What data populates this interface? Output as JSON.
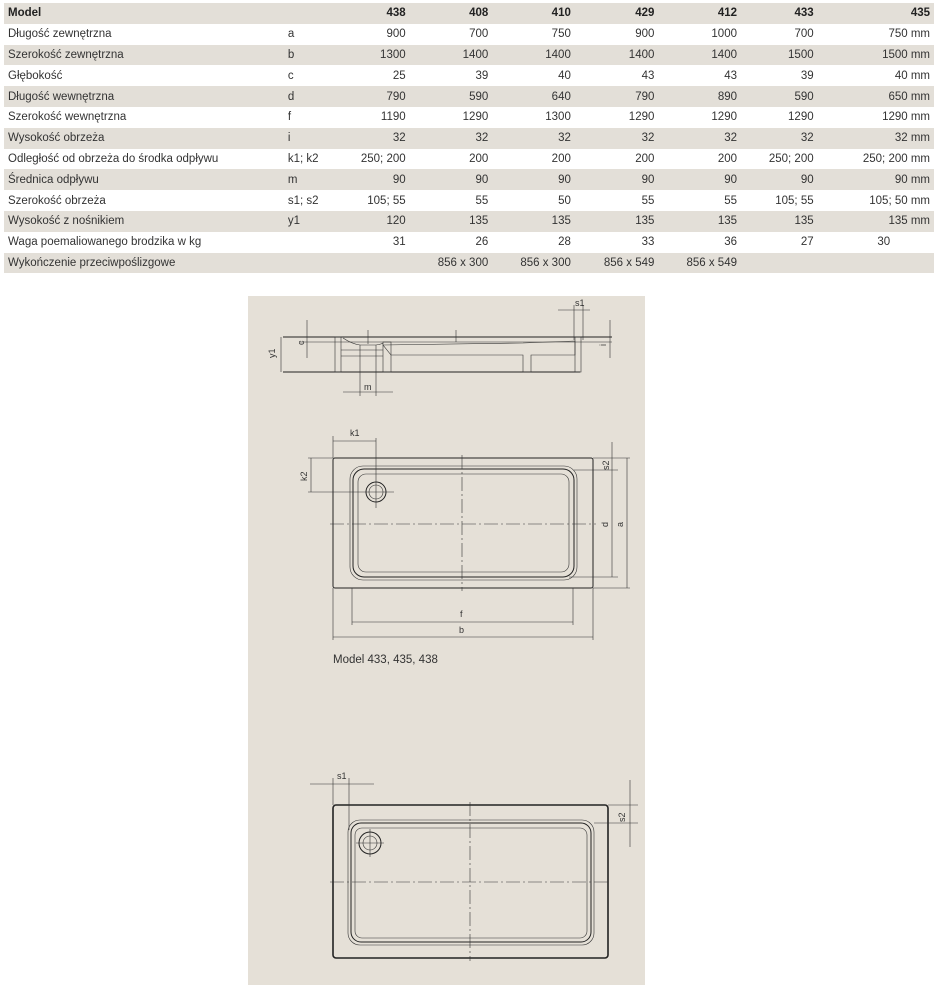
{
  "table": {
    "header": {
      "label": "Model",
      "models": [
        "438",
        "408",
        "410",
        "429",
        "412",
        "433",
        "435"
      ]
    },
    "rows": [
      {
        "label": "Długość zewnętrzna",
        "symbol": "a",
        "values": [
          "900",
          "700",
          "750",
          "900",
          "1000",
          "700",
          "750 mm"
        ]
      },
      {
        "label": "Szerokość zewnętrzna",
        "symbol": "b",
        "values": [
          "1300",
          "1400",
          "1400",
          "1400",
          "1400",
          "1500",
          "1500 mm"
        ]
      },
      {
        "label": "Głębokość",
        "symbol": "c",
        "values": [
          "25",
          "39",
          "40",
          "43",
          "43",
          "39",
          "40 mm"
        ]
      },
      {
        "label": "Długość wewnętrzna",
        "symbol": "d",
        "values": [
          "790",
          "590",
          "640",
          "790",
          "890",
          "590",
          "650 mm"
        ]
      },
      {
        "label": "Szerokość wewnętrzna",
        "symbol": "f",
        "values": [
          "1190",
          "1290",
          "1300",
          "1290",
          "1290",
          "1290",
          "1290 mm"
        ]
      },
      {
        "label": "Wysokość obrzeża",
        "symbol": "i",
        "values": [
          "32",
          "32",
          "32",
          "32",
          "32",
          "32",
          "32 mm"
        ]
      },
      {
        "label": "Odległość od obrzeża do środka odpływu",
        "symbol": "k1; k2",
        "values": [
          "250; 200",
          "200",
          "200",
          "200",
          "200",
          "250; 200",
          "250; 200 mm"
        ]
      },
      {
        "label": "Średnica odpływu",
        "symbol": "m",
        "values": [
          "90",
          "90",
          "90",
          "90",
          "90",
          "90",
          "90 mm"
        ]
      },
      {
        "label": "Szerokość obrzeża",
        "symbol": "s1; s2",
        "values": [
          "105; 55",
          "55",
          "50",
          "55",
          "55",
          "105; 55",
          "105; 50 mm"
        ]
      },
      {
        "label": "Wysokość z nośnikiem",
        "symbol": "y1",
        "values": [
          "120",
          "135",
          "135",
          "135",
          "135",
          "135",
          "135 mm"
        ]
      },
      {
        "label": "Waga poemaliowanego brodzika w kg",
        "symbol": "",
        "values": [
          "31",
          "26",
          "28",
          "33",
          "36",
          "27",
          "30"
        ]
      },
      {
        "label": "Wykończenie przeciwpoślizgowe",
        "symbol": "",
        "values": [
          "",
          "856 x 300",
          "856 x 300",
          "856 x 549",
          "856 x 549",
          "",
          ""
        ]
      }
    ]
  },
  "drawings": {
    "section_labels": {
      "y1": "y1",
      "c": "c",
      "m": "m",
      "s1": "s1",
      "i": "i"
    },
    "plan_labels": {
      "k1": "k1",
      "k2": "k2",
      "s2": "s2",
      "d": "d",
      "a": "a",
      "f": "f",
      "b": "b"
    },
    "plan_caption": "Model 433, 435, 438",
    "plan2_labels": {
      "s1": "s1",
      "s2": "s2"
    }
  },
  "colors": {
    "stripe": "#e3dfd8",
    "panel": "#e5e0d7"
  }
}
